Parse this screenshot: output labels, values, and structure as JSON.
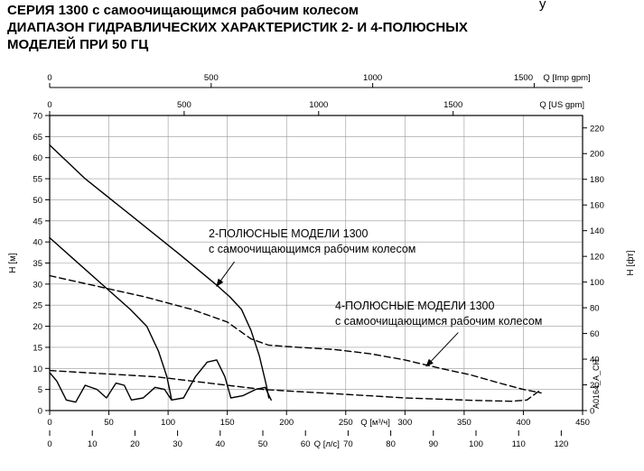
{
  "page": {
    "stray_char": "у"
  },
  "title": {
    "line1": "СЕРИЯ 1300 с самоочищающимся рабочим колесом",
    "line2": "ДИАПАЗОН ГИДРАВЛИЧЕСКИХ ХАРАКТЕРИСТИК 2- И 4-ПОЛЮСНЫХ",
    "line3": "МОДЕЛЕЙ ПРИ 50 ГЦ"
  },
  "annotations": {
    "two_pole": {
      "line1": "2-ПОЛЮСНЫЕ МОДЕЛИ 1300",
      "line2": "с самоочищающимся рабочим колесом"
    },
    "four_pole": {
      "line1": "4-ПОЛЮСНЫЕ МОДЕЛИ 1300",
      "line2": "с самоочищающимся рабочим колесом"
    }
  },
  "watermark": "A0164_A_CH",
  "chart_data": {
    "type": "line",
    "grid": true,
    "frequency": "50 Гц",
    "axes": {
      "left": {
        "label": "H [м]",
        "min": 0,
        "max": 70,
        "ticks": [
          0,
          5,
          10,
          15,
          20,
          25,
          30,
          35,
          40,
          45,
          50,
          55,
          60,
          65,
          70
        ]
      },
      "right": {
        "label": "H [фт]",
        "ticks": [
          0,
          20,
          40,
          60,
          80,
          100,
          120,
          140,
          160,
          180,
          200,
          220
        ],
        "m_per_unit": 0.3048
      },
      "bottom_m3h": {
        "label": "Q [м³/ч]",
        "min": 0,
        "max": 450,
        "ticks": [
          0,
          50,
          100,
          150,
          200,
          250,
          300,
          350,
          400,
          450
        ]
      },
      "bottom_ls": {
        "label": "Q [л/с]",
        "ticks": [
          0,
          10,
          20,
          30,
          40,
          50,
          60,
          70,
          80,
          90,
          100,
          110,
          120
        ],
        "m3h_per_unit": 3.6
      },
      "top_imp_gpm": {
        "label": "Q [Imp gpm]",
        "ticks": [
          0,
          500,
          1000,
          1500
        ],
        "m3h_per_unit": 0.27276
      },
      "top_us_gpm": {
        "label": "Q [US gpm]",
        "ticks": [
          0,
          500,
          1000,
          1500
        ],
        "m3h_per_unit": 0.22712
      }
    },
    "series": [
      {
        "name": "2-pole-upper-envelope",
        "pole": 2,
        "style": "solid",
        "points": [
          [
            0,
            63
          ],
          [
            30,
            55
          ],
          [
            70,
            46
          ],
          [
            110,
            37
          ],
          [
            140,
            30
          ],
          [
            152,
            27
          ],
          [
            162,
            24
          ],
          [
            170,
            19
          ],
          [
            177,
            13
          ],
          [
            183,
            6
          ],
          [
            185,
            3
          ]
        ]
      },
      {
        "name": "2-pole-mid-curve",
        "pole": 2,
        "style": "solid",
        "points": [
          [
            0,
            41
          ],
          [
            22,
            35.5
          ],
          [
            48,
            29
          ],
          [
            68,
            24
          ],
          [
            82,
            20
          ],
          [
            92,
            14
          ],
          [
            99,
            8
          ],
          [
            102,
            4
          ],
          [
            103,
            2.5
          ]
        ]
      },
      {
        "name": "2-pole-lower-zigzag",
        "pole": 2,
        "style": "solid",
        "points": [
          [
            0,
            9
          ],
          [
            6,
            7
          ],
          [
            14,
            2.5
          ],
          [
            22,
            2
          ],
          [
            30,
            6
          ],
          [
            40,
            5
          ],
          [
            48,
            3
          ],
          [
            56,
            6.5
          ],
          [
            63,
            6
          ],
          [
            69,
            2.5
          ],
          [
            79,
            3
          ],
          [
            89,
            5.5
          ],
          [
            97,
            5
          ],
          [
            103,
            2.5
          ],
          [
            113,
            3
          ],
          [
            123,
            8
          ],
          [
            133,
            11.5
          ],
          [
            141,
            12
          ],
          [
            148,
            8
          ],
          [
            153,
            3
          ],
          [
            163,
            3.5
          ],
          [
            174,
            5
          ],
          [
            182,
            5.5
          ],
          [
            187,
            2.5
          ]
        ]
      },
      {
        "name": "4-pole-upper-envelope",
        "pole": 4,
        "style": "dashed",
        "points": [
          [
            0,
            32
          ],
          [
            40,
            29.5
          ],
          [
            80,
            27
          ],
          [
            120,
            24
          ],
          [
            150,
            21
          ],
          [
            170,
            17
          ],
          [
            185,
            15.5
          ],
          [
            210,
            15
          ],
          [
            240,
            14.5
          ],
          [
            270,
            13.5
          ],
          [
            300,
            12
          ],
          [
            330,
            10
          ],
          [
            355,
            8.5
          ],
          [
            380,
            6.5
          ],
          [
            400,
            5
          ],
          [
            415,
            4.2
          ]
        ]
      },
      {
        "name": "4-pole-lower-envelope",
        "pole": 4,
        "style": "dashed",
        "points": [
          [
            0,
            9.5
          ],
          [
            30,
            9
          ],
          [
            60,
            8.5
          ],
          [
            90,
            8
          ],
          [
            120,
            7
          ],
          [
            150,
            6
          ],
          [
            180,
            5
          ],
          [
            210,
            4.5
          ],
          [
            240,
            4
          ],
          [
            270,
            3.5
          ],
          [
            300,
            3
          ],
          [
            330,
            2.7
          ],
          [
            360,
            2.4
          ],
          [
            390,
            2.2
          ],
          [
            403,
            2.5
          ],
          [
            415,
            5
          ]
        ]
      }
    ],
    "arrows": [
      {
        "name": "arrow-to-2-pole-region",
        "from": [
          156,
          35.3
        ],
        "to": [
          141,
          29.5
        ]
      },
      {
        "name": "arrow-to-4-pole-region",
        "from": [
          345,
          18.5
        ],
        "to": [
          318,
          10.5
        ]
      }
    ]
  }
}
